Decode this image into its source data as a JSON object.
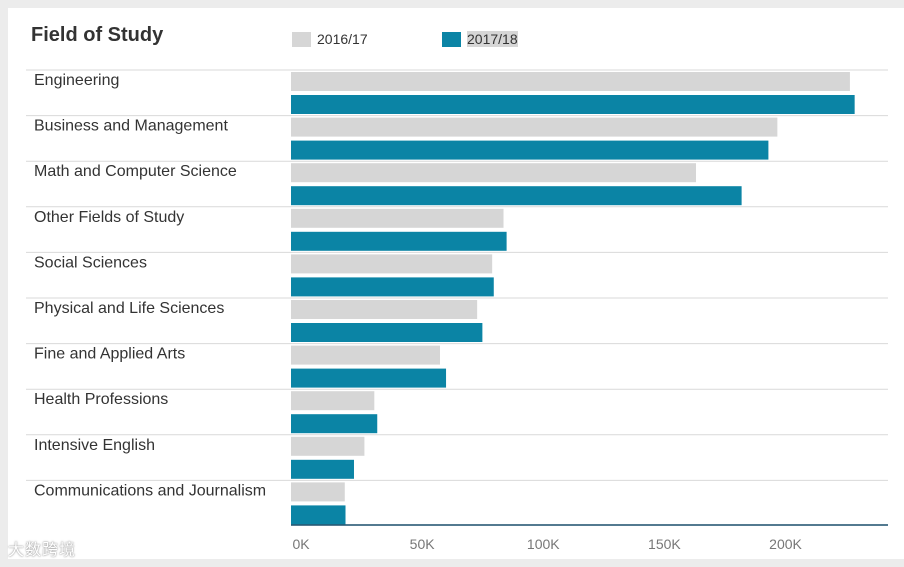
{
  "chart_data": {
    "type": "bar",
    "orientation": "horizontal",
    "title": "Field of Study",
    "categories": [
      "Engineering",
      "Business and Management",
      "Math and Computer Science",
      "Other Fields of Study",
      "Social Sciences",
      "Physical and Life Sciences",
      "Fine and Applied Arts",
      "Health Professions",
      "Intensive English",
      "Communications and Journalism"
    ],
    "series": [
      {
        "name": "2016/17",
        "color": "#d6d6d6",
        "values": [
          230711,
          200754,
          167180,
          87725,
          83046,
          76838,
          61506,
          34395,
          30309,
          22200
        ]
      },
      {
        "name": "2017/18",
        "color": "#0b84a5",
        "values": [
          232664,
          197063,
          186003,
          89000,
          83700,
          79000,
          64000,
          35600,
          26000,
          22500
        ]
      }
    ],
    "x_ticks": [
      {
        "value": 0,
        "label": "0K"
      },
      {
        "value": 50000,
        "label": "50K"
      },
      {
        "value": 100000,
        "label": "100K"
      },
      {
        "value": 150000,
        "label": "150K"
      },
      {
        "value": 200000,
        "label": "200K"
      }
    ],
    "xlim": [
      0,
      245000
    ],
    "legend_position": "top"
  },
  "watermark": "大数跨境"
}
